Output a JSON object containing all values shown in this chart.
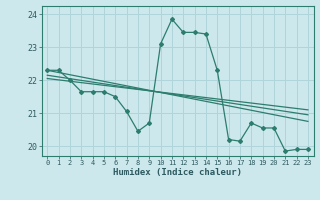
{
  "xlabel": "Humidex (Indice chaleur)",
  "background_color": "#cce8ec",
  "grid_color": "#afd4da",
  "line_color": "#2d7d6e",
  "xlim": [
    -0.5,
    23.5
  ],
  "ylim": [
    19.7,
    24.25
  ],
  "yticks": [
    20,
    21,
    22,
    23,
    24
  ],
  "xticks": [
    0,
    1,
    2,
    3,
    4,
    5,
    6,
    7,
    8,
    9,
    10,
    11,
    12,
    13,
    14,
    15,
    16,
    17,
    18,
    19,
    20,
    21,
    22,
    23
  ],
  "series1_x": [
    0,
    1,
    2,
    3,
    4,
    5,
    6,
    7,
    8,
    9,
    10,
    11,
    12,
    13,
    14,
    15,
    16,
    17,
    18,
    19,
    20,
    21,
    22,
    23
  ],
  "series1_y": [
    22.3,
    22.3,
    22.0,
    21.65,
    21.65,
    21.65,
    21.5,
    21.05,
    20.45,
    20.7,
    23.1,
    23.85,
    23.45,
    23.45,
    23.4,
    22.3,
    20.2,
    20.15,
    20.7,
    20.55,
    20.55,
    19.85,
    19.9,
    19.9
  ],
  "trend1_x": [
    0,
    23
  ],
  "trend1_y": [
    22.3,
    20.75
  ],
  "trend2_x": [
    0,
    23
  ],
  "trend2_y": [
    22.15,
    20.95
  ],
  "trend3_x": [
    0,
    23
  ],
  "trend3_y": [
    22.05,
    21.1
  ]
}
